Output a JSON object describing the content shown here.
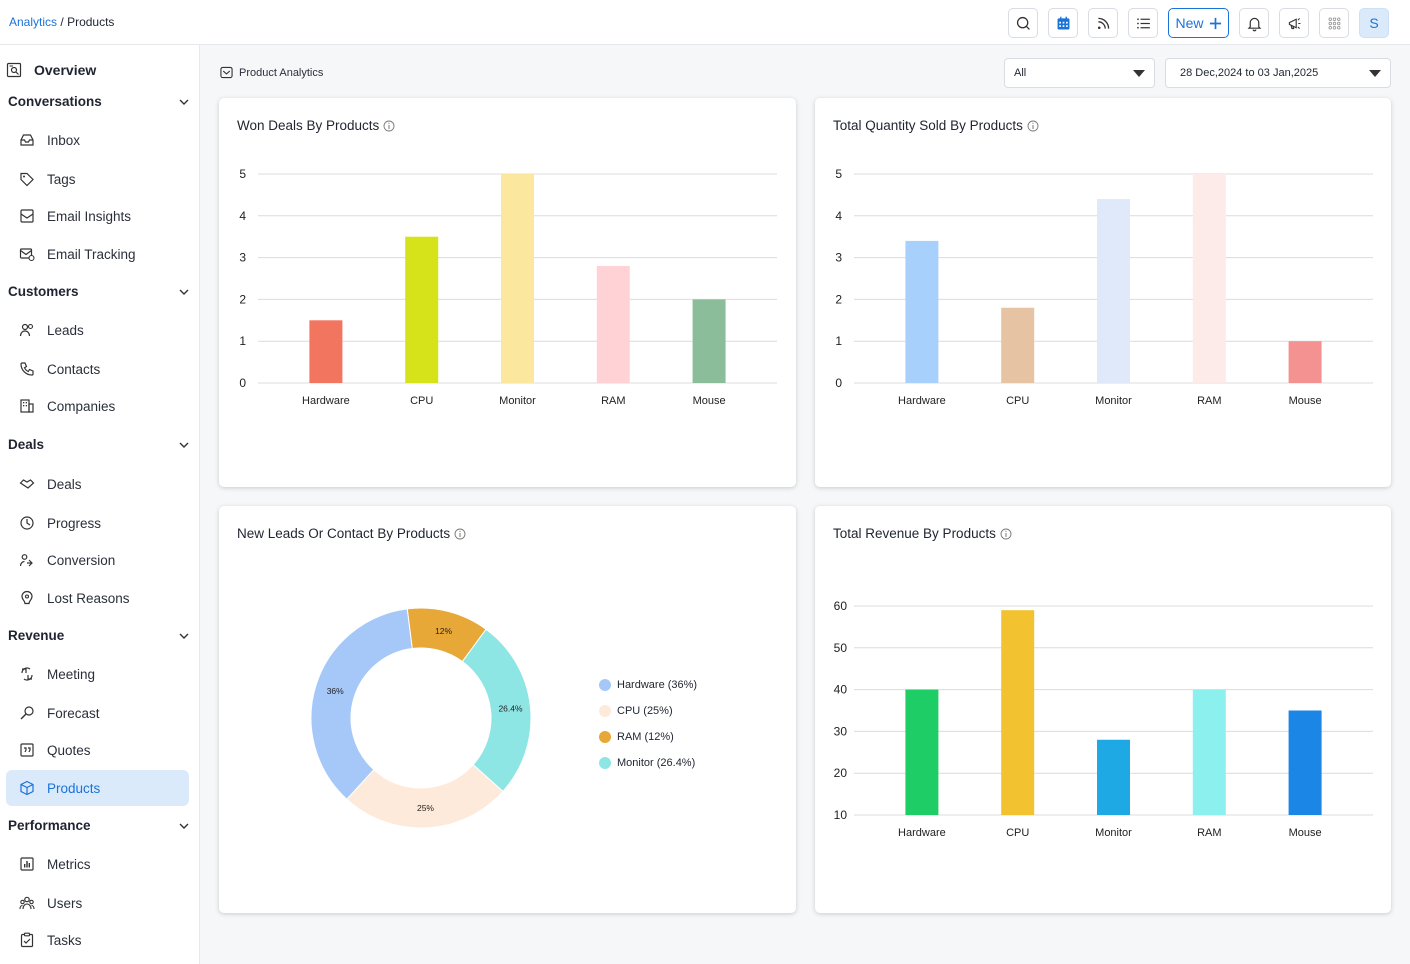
{
  "breadcrumb": {
    "parent": "Analytics",
    "sep": "/",
    "current": "Products"
  },
  "topbar": {
    "new_label": "New",
    "avatar": "S"
  },
  "sidebar": {
    "overview": "Overview",
    "sections": [
      {
        "label": "Conversations",
        "items": [
          "Inbox",
          "Tags",
          "Email Insights",
          "Email Tracking"
        ]
      },
      {
        "label": "Customers",
        "items": [
          "Leads",
          "Contacts",
          "Companies"
        ]
      },
      {
        "label": "Deals",
        "items": [
          "Deals",
          "Progress",
          "Conversion",
          "Lost Reasons"
        ]
      },
      {
        "label": "Revenue",
        "items": [
          "Meeting",
          "Forecast",
          "Quotes",
          "Products"
        ]
      },
      {
        "label": "Performance",
        "items": [
          "Metrics",
          "Users",
          "Tasks"
        ]
      }
    ],
    "active_item": "Products"
  },
  "header": {
    "page_label": "Product Analytics",
    "filter_value": "All",
    "date_range": "28 Dec,2024 to 03 Jan,2025"
  },
  "colors": {
    "accent": "#1a73d9",
    "active_bg": "#dbeafb"
  },
  "chart_data": [
    {
      "type": "bar",
      "title": "Won Deals By Products",
      "categories": [
        "Hardware",
        "CPU",
        "Monitor",
        "RAM",
        "Mouse"
      ],
      "values": [
        1.5,
        3.5,
        5,
        2.8,
        2
      ],
      "colors": [
        "#f2765f",
        "#d6e31b",
        "#fbe79e",
        "#ffd3d6",
        "#8bbd9a"
      ],
      "yticks": [
        0,
        1,
        2,
        3,
        4,
        5
      ],
      "ylim": [
        0,
        5
      ]
    },
    {
      "type": "bar",
      "title": "Total Quantity Sold By Products",
      "categories": [
        "Hardware",
        "CPU",
        "Monitor",
        "RAM",
        "Mouse"
      ],
      "values": [
        3.4,
        1.8,
        4.4,
        5,
        1
      ],
      "colors": [
        "#a8d0fc",
        "#e6c3a2",
        "#e0e9fa",
        "#fdebea",
        "#f49291"
      ],
      "yticks": [
        0,
        1,
        2,
        3,
        4,
        5
      ],
      "ylim": [
        0,
        5
      ]
    },
    {
      "type": "pie",
      "title": "New Leads Or Contact By Products",
      "slices": [
        {
          "label": "Hardware (36%)",
          "value": 36,
          "text": "36%",
          "color": "#a5c8f8"
        },
        {
          "label": "CPU (25%)",
          "value": 25,
          "text": "25%",
          "color": "#fdeadb"
        },
        {
          "label": "RAM (12%)",
          "value": 12,
          "text": "12%",
          "color": "#e8a838"
        },
        {
          "label": "Monitor (26.4%)",
          "value": 26.4,
          "text": "26.4%",
          "color": "#8de6e4"
        }
      ],
      "draw_order": [
        "RAM (12%)",
        "Monitor (26.4%)",
        "CPU (25%)",
        "Hardware (36%)"
      ]
    },
    {
      "type": "bar",
      "title": "Total Revenue By Products",
      "categories": [
        "Hardware",
        "CPU",
        "Monitor",
        "RAM",
        "Mouse"
      ],
      "values": [
        40,
        59,
        28,
        40,
        35
      ],
      "colors": [
        "#1fcd67",
        "#f2c230",
        "#1ea9e4",
        "#8cf0ee",
        "#1b86e6"
      ],
      "yticks": [
        10,
        20,
        30,
        40,
        50,
        60
      ],
      "ylim": [
        10,
        60
      ]
    }
  ]
}
